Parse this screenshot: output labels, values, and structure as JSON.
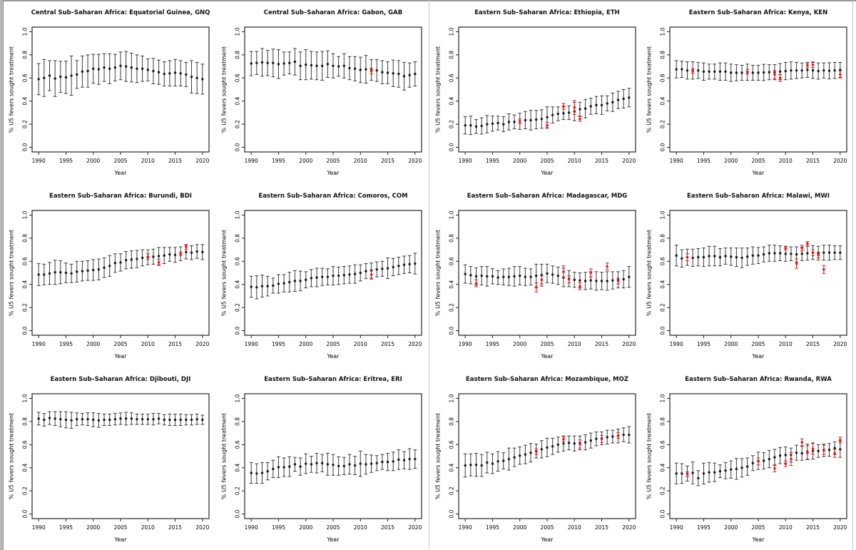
{
  "page": {
    "background": "#ffffff",
    "chrome": {
      "left_strip": "#b7b7b7",
      "top_line": "#9a9a9a",
      "divider": "#c9c9c9",
      "right_line": "#c4c4c4"
    }
  },
  "colors": {
    "point": "#1c1c1c",
    "errorbar": "#3d3d3d",
    "survey": "#e61a1a",
    "box": "#262626",
    "text": "#000000"
  },
  "axes": {
    "xlabel": "Year",
    "ylabel": "% U5 fevers sought treatment",
    "x_ticks": [
      1990,
      1995,
      2000,
      2005,
      2010,
      2015,
      2020
    ],
    "y_ticks": [
      "0.0",
      "0.2",
      "0.4",
      "0.6",
      "0.8",
      "1.0"
    ],
    "xlim": [
      1990,
      2020
    ],
    "ylim": [
      0.0,
      1.0
    ],
    "years": [
      1990,
      1991,
      1992,
      1993,
      1994,
      1995,
      1996,
      1997,
      1998,
      1999,
      2000,
      2001,
      2002,
      2003,
      2004,
      2005,
      2006,
      2007,
      2008,
      2009,
      2010,
      2011,
      2012,
      2013,
      2014,
      2015,
      2016,
      2017,
      2018,
      2019,
      2020
    ]
  },
  "chart_data": [
    {
      "id": "gnq",
      "type": "scatter",
      "title": "Central Sub–Saharan Africa: Equatorial Guinea, GNQ",
      "y": [
        0.59,
        0.6,
        0.62,
        0.595,
        0.61,
        0.605,
        0.62,
        0.63,
        0.655,
        0.66,
        0.68,
        0.675,
        0.69,
        0.68,
        0.69,
        0.705,
        0.7,
        0.69,
        0.68,
        0.68,
        0.67,
        0.66,
        0.65,
        0.635,
        0.64,
        0.645,
        0.64,
        0.63,
        0.61,
        0.6,
        0.59
      ],
      "err": [
        0.135,
        0.16,
        0.13,
        0.155,
        0.135,
        0.14,
        0.17,
        0.12,
        0.135,
        0.14,
        0.125,
        0.13,
        0.12,
        0.13,
        0.115,
        0.12,
        0.13,
        0.125,
        0.12,
        0.11,
        0.095,
        0.11,
        0.105,
        0.105,
        0.11,
        0.115,
        0.11,
        0.105,
        0.14,
        0.135,
        0.13
      ],
      "survey_points": []
    },
    {
      "id": "gab",
      "type": "scatter",
      "title": "Central Sub–Saharan Africa: Gabon, GAB",
      "y": [
        0.725,
        0.73,
        0.735,
        0.73,
        0.73,
        0.72,
        0.725,
        0.73,
        0.74,
        0.705,
        0.715,
        0.71,
        0.705,
        0.705,
        0.72,
        0.705,
        0.7,
        0.705,
        0.685,
        0.68,
        0.67,
        0.675,
        0.67,
        0.665,
        0.65,
        0.645,
        0.64,
        0.635,
        0.615,
        0.625,
        0.635
      ],
      "err": [
        0.105,
        0.1,
        0.12,
        0.11,
        0.12,
        0.125,
        0.1,
        0.095,
        0.115,
        0.12,
        0.13,
        0.12,
        0.12,
        0.125,
        0.115,
        0.105,
        0.085,
        0.105,
        0.1,
        0.105,
        0.11,
        0.12,
        0.09,
        0.095,
        0.1,
        0.095,
        0.115,
        0.115,
        0.12,
        0.105,
        0.105
      ],
      "survey_points": [
        {
          "x": 2012,
          "y": 0.66,
          "err": 0.025
        }
      ]
    },
    {
      "id": "eth",
      "type": "scatter",
      "title": "Eastern Sub–Saharan Africa: Ethiopia, ETH",
      "y": [
        0.19,
        0.19,
        0.18,
        0.185,
        0.2,
        0.205,
        0.21,
        0.2,
        0.22,
        0.22,
        0.225,
        0.235,
        0.235,
        0.24,
        0.245,
        0.26,
        0.28,
        0.29,
        0.295,
        0.3,
        0.31,
        0.33,
        0.335,
        0.355,
        0.365,
        0.365,
        0.38,
        0.39,
        0.41,
        0.42,
        0.43
      ],
      "err": [
        0.075,
        0.08,
        0.06,
        0.07,
        0.075,
        0.065,
        0.06,
        0.065,
        0.07,
        0.06,
        0.07,
        0.075,
        0.085,
        0.08,
        0.08,
        0.09,
        0.07,
        0.06,
        0.055,
        0.06,
        0.08,
        0.06,
        0.08,
        0.07,
        0.075,
        0.08,
        0.065,
        0.08,
        0.075,
        0.08,
        0.08
      ],
      "survey_points": [
        {
          "x": 2000,
          "y": 0.225,
          "err": 0.02
        },
        {
          "x": 2005,
          "y": 0.19,
          "err": 0.025
        },
        {
          "x": 2008,
          "y": 0.355,
          "err": 0.025
        },
        {
          "x": 2010,
          "y": 0.345,
          "err": 0.06
        },
        {
          "x": 2011,
          "y": 0.245,
          "err": 0.02
        }
      ]
    },
    {
      "id": "ken",
      "type": "scatter",
      "title": "Eastern Sub–Saharan Africa: Kenya, KEN",
      "y": [
        0.675,
        0.675,
        0.665,
        0.665,
        0.665,
        0.655,
        0.655,
        0.655,
        0.655,
        0.655,
        0.645,
        0.645,
        0.645,
        0.65,
        0.645,
        0.645,
        0.648,
        0.65,
        0.65,
        0.655,
        0.66,
        0.665,
        0.665,
        0.665,
        0.67,
        0.665,
        0.66,
        0.665,
        0.662,
        0.665,
        0.67
      ],
      "err": [
        0.075,
        0.07,
        0.075,
        0.075,
        0.07,
        0.075,
        0.065,
        0.065,
        0.075,
        0.075,
        0.075,
        0.07,
        0.065,
        0.07,
        0.065,
        0.065,
        0.07,
        0.065,
        0.065,
        0.07,
        0.075,
        0.075,
        0.07,
        0.065,
        0.065,
        0.07,
        0.07,
        0.065,
        0.07,
        0.07,
        0.065
      ],
      "survey_points": [
        {
          "x": 1993,
          "y": 0.66,
          "err": 0.02
        },
        {
          "x": 2003,
          "y": 0.655,
          "err": 0.02
        },
        {
          "x": 2008,
          "y": 0.63,
          "err": 0.035
        },
        {
          "x": 2009,
          "y": 0.6,
          "err": 0.03
        },
        {
          "x": 2014,
          "y": 0.71,
          "err": 0.02
        },
        {
          "x": 2015,
          "y": 0.715,
          "err": 0.025
        },
        {
          "x": 2020,
          "y": 0.63,
          "err": 0.03
        }
      ]
    },
    {
      "id": "bdi",
      "type": "scatter",
      "title": "Eastern Sub–Saharan Africa: Burundi, BDI",
      "y": [
        0.485,
        0.485,
        0.495,
        0.505,
        0.505,
        0.5,
        0.495,
        0.51,
        0.515,
        0.52,
        0.525,
        0.53,
        0.545,
        0.56,
        0.585,
        0.59,
        0.61,
        0.615,
        0.62,
        0.63,
        0.635,
        0.64,
        0.645,
        0.65,
        0.66,
        0.655,
        0.665,
        0.68,
        0.675,
        0.685,
        0.68
      ],
      "err": [
        0.095,
        0.09,
        0.095,
        0.105,
        0.1,
        0.085,
        0.08,
        0.09,
        0.085,
        0.085,
        0.09,
        0.09,
        0.085,
        0.09,
        0.08,
        0.075,
        0.075,
        0.075,
        0.075,
        0.07,
        0.065,
        0.065,
        0.075,
        0.07,
        0.06,
        0.065,
        0.06,
        0.06,
        0.06,
        0.06,
        0.065
      ],
      "survey_points": [
        {
          "x": 2010,
          "y": 0.64,
          "err": 0.025
        },
        {
          "x": 2012,
          "y": 0.59,
          "err": 0.025
        },
        {
          "x": 2016,
          "y": 0.665,
          "err": 0.015
        },
        {
          "x": 2017,
          "y": 0.725,
          "err": 0.02
        }
      ]
    },
    {
      "id": "com",
      "type": "scatter",
      "title": "Eastern Sub–Saharan Africa: Comoros, COM",
      "y": [
        0.38,
        0.375,
        0.385,
        0.385,
        0.39,
        0.405,
        0.41,
        0.42,
        0.43,
        0.43,
        0.44,
        0.455,
        0.46,
        0.465,
        0.465,
        0.475,
        0.475,
        0.48,
        0.485,
        0.49,
        0.5,
        0.515,
        0.52,
        0.53,
        0.535,
        0.54,
        0.55,
        0.56,
        0.57,
        0.575,
        0.58
      ],
      "err": [
        0.09,
        0.1,
        0.095,
        0.085,
        0.065,
        0.08,
        0.075,
        0.085,
        0.09,
        0.085,
        0.07,
        0.075,
        0.08,
        0.075,
        0.07,
        0.08,
        0.075,
        0.075,
        0.075,
        0.08,
        0.07,
        0.065,
        0.065,
        0.065,
        0.065,
        0.09,
        0.075,
        0.075,
        0.075,
        0.075,
        0.09
      ],
      "survey_points": [
        {
          "x": 2012,
          "y": 0.485,
          "err": 0.04
        }
      ]
    },
    {
      "id": "mdg",
      "type": "scatter",
      "title": "Eastern Sub–Saharan Africa: Madagascar, MDG",
      "y": [
        0.49,
        0.48,
        0.47,
        0.475,
        0.47,
        0.47,
        0.46,
        0.465,
        0.465,
        0.47,
        0.475,
        0.465,
        0.465,
        0.475,
        0.48,
        0.495,
        0.485,
        0.475,
        0.46,
        0.45,
        0.44,
        0.435,
        0.43,
        0.435,
        0.43,
        0.43,
        0.43,
        0.435,
        0.44,
        0.445,
        0.465
      ],
      "err": [
        0.08,
        0.075,
        0.075,
        0.08,
        0.085,
        0.065,
        0.06,
        0.07,
        0.075,
        0.085,
        0.08,
        0.075,
        0.07,
        0.1,
        0.095,
        0.08,
        0.075,
        0.075,
        0.08,
        0.07,
        0.065,
        0.065,
        0.075,
        0.075,
        0.08,
        0.075,
        0.08,
        0.075,
        0.07,
        0.075,
        0.09
      ],
      "survey_points": [
        {
          "x": 1992,
          "y": 0.41,
          "err": 0.03
        },
        {
          "x": 2003,
          "y": 0.375,
          "err": 0.04
        },
        {
          "x": 2004,
          "y": 0.44,
          "err": 0.035
        },
        {
          "x": 2008,
          "y": 0.51,
          "err": 0.05
        },
        {
          "x": 2009,
          "y": 0.445,
          "err": 0.03
        },
        {
          "x": 2011,
          "y": 0.385,
          "err": 0.03
        },
        {
          "x": 2013,
          "y": 0.5,
          "err": 0.035
        },
        {
          "x": 2016,
          "y": 0.555,
          "err": 0.03
        },
        {
          "x": 2018,
          "y": 0.43,
          "err": 0.025
        }
      ]
    },
    {
      "id": "mwi",
      "type": "scatter",
      "title": "Eastern Sub–Saharan Africa: Malawi, MWI",
      "y": [
        0.65,
        0.625,
        0.635,
        0.63,
        0.635,
        0.635,
        0.645,
        0.645,
        0.635,
        0.645,
        0.64,
        0.635,
        0.63,
        0.64,
        0.65,
        0.65,
        0.66,
        0.67,
        0.67,
        0.67,
        0.665,
        0.665,
        0.66,
        0.665,
        0.67,
        0.675,
        0.67,
        0.675,
        0.675,
        0.675,
        0.675
      ],
      "err": [
        0.09,
        0.075,
        0.07,
        0.075,
        0.075,
        0.08,
        0.085,
        0.085,
        0.075,
        0.07,
        0.075,
        0.08,
        0.085,
        0.075,
        0.075,
        0.07,
        0.065,
        0.07,
        0.07,
        0.065,
        0.065,
        0.06,
        0.065,
        0.06,
        0.06,
        0.06,
        0.06,
        0.065,
        0.065,
        0.06,
        0.06
      ],
      "survey_points": [
        {
          "x": 1992,
          "y": 0.635,
          "err": 0.03
        },
        {
          "x": 2010,
          "y": 0.715,
          "err": 0.015
        },
        {
          "x": 2012,
          "y": 0.58,
          "err": 0.04
        },
        {
          "x": 2013,
          "y": 0.715,
          "err": 0.025
        },
        {
          "x": 2014,
          "y": 0.755,
          "err": 0.015
        },
        {
          "x": 2015,
          "y": 0.675,
          "err": 0.025
        },
        {
          "x": 2016,
          "y": 0.655,
          "err": 0.025
        },
        {
          "x": 2017,
          "y": 0.53,
          "err": 0.035
        }
      ]
    },
    {
      "id": "dji",
      "type": "scatter",
      "title": "Eastern Sub–Saharan Africa: Djibouti, DJI",
      "y": [
        0.825,
        0.815,
        0.83,
        0.825,
        0.82,
        0.815,
        0.81,
        0.82,
        0.82,
        0.82,
        0.815,
        0.81,
        0.815,
        0.815,
        0.82,
        0.825,
        0.825,
        0.825,
        0.82,
        0.82,
        0.82,
        0.82,
        0.825,
        0.815,
        0.815,
        0.815,
        0.815,
        0.815,
        0.815,
        0.82,
        0.815
      ],
      "err": [
        0.055,
        0.055,
        0.055,
        0.06,
        0.065,
        0.07,
        0.07,
        0.055,
        0.05,
        0.055,
        0.06,
        0.06,
        0.05,
        0.05,
        0.05,
        0.05,
        0.055,
        0.05,
        0.045,
        0.045,
        0.045,
        0.05,
        0.045,
        0.045,
        0.05,
        0.05,
        0.05,
        0.045,
        0.045,
        0.045,
        0.04
      ],
      "survey_points": []
    },
    {
      "id": "eri",
      "type": "scatter",
      "title": "Eastern Sub–Saharan Africa: Eritrea, ERI",
      "y": [
        0.355,
        0.35,
        0.355,
        0.37,
        0.39,
        0.405,
        0.405,
        0.41,
        0.43,
        0.41,
        0.435,
        0.43,
        0.44,
        0.44,
        0.43,
        0.425,
        0.415,
        0.415,
        0.43,
        0.42,
        0.435,
        0.43,
        0.435,
        0.44,
        0.45,
        0.45,
        0.455,
        0.47,
        0.465,
        0.475,
        0.475
      ],
      "err": [
        0.09,
        0.085,
        0.09,
        0.075,
        0.075,
        0.09,
        0.08,
        0.085,
        0.06,
        0.075,
        0.085,
        0.07,
        0.085,
        0.075,
        0.095,
        0.09,
        0.08,
        0.075,
        0.085,
        0.08,
        0.11,
        0.085,
        0.075,
        0.065,
        0.065,
        0.075,
        0.08,
        0.085,
        0.075,
        0.09,
        0.08
      ],
      "survey_points": []
    },
    {
      "id": "moz",
      "type": "scatter",
      "title": "Eastern Sub–Saharan Africa: Mozambique, MOZ",
      "y": [
        0.42,
        0.425,
        0.425,
        0.42,
        0.445,
        0.435,
        0.455,
        0.46,
        0.475,
        0.49,
        0.505,
        0.515,
        0.53,
        0.545,
        0.56,
        0.575,
        0.585,
        0.6,
        0.61,
        0.615,
        0.61,
        0.615,
        0.62,
        0.635,
        0.65,
        0.655,
        0.665,
        0.67,
        0.675,
        0.685,
        0.685
      ],
      "err": [
        0.1,
        0.095,
        0.1,
        0.095,
        0.09,
        0.085,
        0.085,
        0.07,
        0.095,
        0.08,
        0.075,
        0.08,
        0.08,
        0.06,
        0.075,
        0.08,
        0.07,
        0.065,
        0.065,
        0.06,
        0.065,
        0.06,
        0.065,
        0.065,
        0.06,
        0.055,
        0.06,
        0.055,
        0.06,
        0.06,
        0.07
      ],
      "survey_points": [
        {
          "x": 2003,
          "y": 0.54,
          "err": 0.025
        },
        {
          "x": 2008,
          "y": 0.65,
          "err": 0.02
        },
        {
          "x": 2011,
          "y": 0.605,
          "err": 0.035
        },
        {
          "x": 2015,
          "y": 0.65,
          "err": 0.03
        },
        {
          "x": 2018,
          "y": 0.68,
          "err": 0.025
        }
      ]
    },
    {
      "id": "rwa",
      "type": "scatter",
      "title": "Eastern Sub–Saharan Africa: Rwanda, RWA",
      "y": [
        0.35,
        0.35,
        0.35,
        0.355,
        0.31,
        0.35,
        0.36,
        0.36,
        0.37,
        0.375,
        0.385,
        0.39,
        0.4,
        0.41,
        0.44,
        0.46,
        0.46,
        0.475,
        0.49,
        0.505,
        0.51,
        0.51,
        0.53,
        0.525,
        0.54,
        0.545,
        0.545,
        0.55,
        0.555,
        0.57,
        0.56
      ],
      "err": [
        0.09,
        0.085,
        0.065,
        0.095,
        0.065,
        0.09,
        0.085,
        0.08,
        0.055,
        0.07,
        0.075,
        0.09,
        0.08,
        0.075,
        0.065,
        0.075,
        0.07,
        0.075,
        0.07,
        0.07,
        0.07,
        0.06,
        0.065,
        0.06,
        0.065,
        0.07,
        0.055,
        0.055,
        0.055,
        0.055,
        0.07
      ],
      "survey_points": [
        {
          "x": 1992,
          "y": 0.345,
          "err": 0.02
        },
        {
          "x": 2005,
          "y": 0.455,
          "err": 0.03
        },
        {
          "x": 2008,
          "y": 0.395,
          "err": 0.03
        },
        {
          "x": 2010,
          "y": 0.435,
          "err": 0.025
        },
        {
          "x": 2011,
          "y": 0.475,
          "err": 0.055
        },
        {
          "x": 2013,
          "y": 0.62,
          "err": 0.03
        },
        {
          "x": 2014,
          "y": 0.53,
          "err": 0.06
        },
        {
          "x": 2015,
          "y": 0.565,
          "err": 0.045
        },
        {
          "x": 2017,
          "y": 0.555,
          "err": 0.04
        },
        {
          "x": 2019,
          "y": 0.525,
          "err": 0.035
        },
        {
          "x": 2020,
          "y": 0.64,
          "err": 0.025
        }
      ]
    }
  ]
}
